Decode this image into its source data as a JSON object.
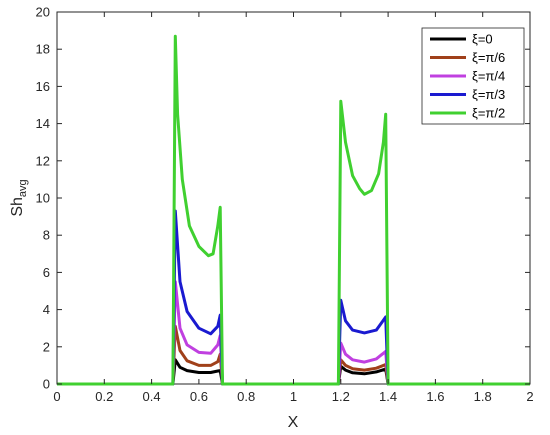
{
  "chart_data": {
    "type": "line",
    "title": "",
    "xlabel": "X",
    "ylabel": {
      "base": "Sh",
      "sub": "avg"
    },
    "xlim": [
      0,
      2
    ],
    "ylim": [
      0,
      20
    ],
    "xticks": [
      "0",
      "0.2",
      "0.4",
      "0.6",
      "0.8",
      "1",
      "1.2",
      "1.4",
      "1.6",
      "1.8",
      "2"
    ],
    "yticks": [
      "0",
      "2",
      "4",
      "6",
      "8",
      "10",
      "12",
      "14",
      "16",
      "18",
      "20"
    ],
    "grid": false,
    "legend_position": "top-right",
    "series": [
      {
        "name": "ξ=0",
        "color": "#000000",
        "points": [
          [
            0,
            0
          ],
          [
            0.49,
            0
          ],
          [
            0.5,
            1.3
          ],
          [
            0.52,
            0.9
          ],
          [
            0.55,
            0.72
          ],
          [
            0.6,
            0.62
          ],
          [
            0.65,
            0.62
          ],
          [
            0.68,
            0.7
          ],
          [
            0.69,
            0.72
          ],
          [
            0.7,
            0
          ],
          [
            1.19,
            0
          ],
          [
            1.2,
            0.95
          ],
          [
            1.22,
            0.75
          ],
          [
            1.25,
            0.6
          ],
          [
            1.3,
            0.55
          ],
          [
            1.35,
            0.65
          ],
          [
            1.39,
            0.8
          ],
          [
            1.4,
            0
          ],
          [
            2,
            0
          ]
        ]
      },
      {
        "name": "ξ=π/6",
        "color": "#a0401a",
        "points": [
          [
            0,
            0
          ],
          [
            0.49,
            0
          ],
          [
            0.5,
            3.1
          ],
          [
            0.52,
            1.8
          ],
          [
            0.55,
            1.25
          ],
          [
            0.6,
            1.0
          ],
          [
            0.65,
            1.0
          ],
          [
            0.68,
            1.2
          ],
          [
            0.69,
            1.6
          ],
          [
            0.7,
            0
          ],
          [
            1.19,
            0
          ],
          [
            1.2,
            1.3
          ],
          [
            1.22,
            1.0
          ],
          [
            1.25,
            0.82
          ],
          [
            1.3,
            0.75
          ],
          [
            1.35,
            0.85
          ],
          [
            1.39,
            1.05
          ],
          [
            1.4,
            0
          ],
          [
            2,
            0
          ]
        ]
      },
      {
        "name": "ξ=π/4",
        "color": "#c040e0",
        "points": [
          [
            0,
            0
          ],
          [
            0.49,
            0
          ],
          [
            0.5,
            5.5
          ],
          [
            0.52,
            3.0
          ],
          [
            0.55,
            2.1
          ],
          [
            0.6,
            1.7
          ],
          [
            0.65,
            1.65
          ],
          [
            0.68,
            2.1
          ],
          [
            0.69,
            2.6
          ],
          [
            0.7,
            0
          ],
          [
            1.19,
            0
          ],
          [
            1.2,
            2.2
          ],
          [
            1.22,
            1.6
          ],
          [
            1.25,
            1.3
          ],
          [
            1.3,
            1.18
          ],
          [
            1.35,
            1.35
          ],
          [
            1.39,
            1.75
          ],
          [
            1.4,
            0
          ],
          [
            2,
            0
          ]
        ]
      },
      {
        "name": "ξ=π/3",
        "color": "#1a1ad0",
        "points": [
          [
            0,
            0
          ],
          [
            0.49,
            0
          ],
          [
            0.5,
            9.3
          ],
          [
            0.52,
            5.5
          ],
          [
            0.55,
            3.9
          ],
          [
            0.6,
            3.0
          ],
          [
            0.65,
            2.7
          ],
          [
            0.68,
            3.1
          ],
          [
            0.69,
            3.7
          ],
          [
            0.7,
            0
          ],
          [
            1.19,
            0
          ],
          [
            1.2,
            4.5
          ],
          [
            1.22,
            3.4
          ],
          [
            1.25,
            2.9
          ],
          [
            1.3,
            2.75
          ],
          [
            1.35,
            2.9
          ],
          [
            1.39,
            3.6
          ],
          [
            1.4,
            0
          ],
          [
            2,
            0
          ]
        ]
      },
      {
        "name": "ξ=π/2",
        "color": "#40d030",
        "points": [
          [
            0,
            0
          ],
          [
            0.49,
            0
          ],
          [
            0.5,
            18.7
          ],
          [
            0.51,
            14.5
          ],
          [
            0.53,
            11.0
          ],
          [
            0.56,
            8.5
          ],
          [
            0.6,
            7.4
          ],
          [
            0.64,
            6.9
          ],
          [
            0.66,
            7.0
          ],
          [
            0.68,
            8.5
          ],
          [
            0.69,
            9.5
          ],
          [
            0.7,
            0
          ],
          [
            1.19,
            0
          ],
          [
            1.2,
            15.2
          ],
          [
            1.22,
            13.0
          ],
          [
            1.25,
            11.2
          ],
          [
            1.28,
            10.5
          ],
          [
            1.3,
            10.2
          ],
          [
            1.33,
            10.4
          ],
          [
            1.36,
            11.3
          ],
          [
            1.38,
            13.0
          ],
          [
            1.39,
            14.5
          ],
          [
            1.4,
            0
          ],
          [
            2,
            0
          ]
        ]
      }
    ]
  }
}
